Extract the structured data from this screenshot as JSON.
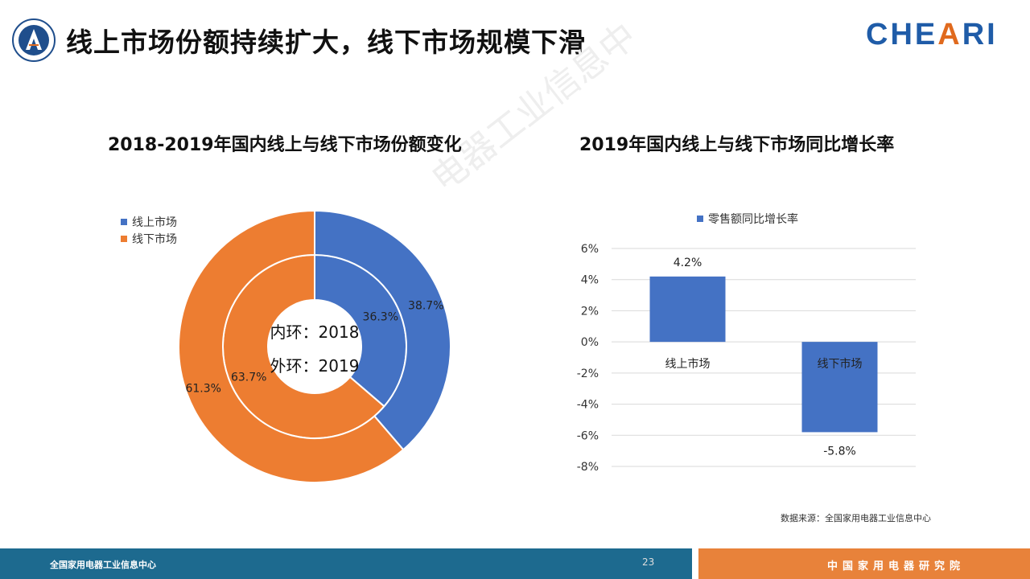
{
  "header": {
    "title": "线上市场份额持续扩大，线下市场规模下滑",
    "logo_left": "shield-logo",
    "logo_right_prefix": "CHE",
    "logo_right_accent": "A",
    "logo_right_suffix": "RI"
  },
  "watermark": "电器工业信息中",
  "footer": {
    "left_text": "全国家用电器工业信息中心",
    "page_number": "23",
    "right_text": "中国家用电器研究院"
  },
  "source": "数据来源：全国家用电器工业信息中心",
  "colors": {
    "blue": "#4472c4",
    "orange": "#ed7d31",
    "footer_blue": "#1d6a8f",
    "footer_orange": "#e8823a"
  },
  "chart_data": [
    {
      "type": "doughnut",
      "title": "2018-2019年国内线上与线下市场份额变化",
      "legend": [
        "线上市场",
        "线下市场"
      ],
      "legend_position": "top-left",
      "center_labels": [
        "内环：2018",
        "外环：2019"
      ],
      "rings": [
        {
          "name": "2018",
          "ring": "inner",
          "values": [
            36.3,
            63.7
          ],
          "labels": [
            "36.3%",
            "63.7%"
          ]
        },
        {
          "name": "2019",
          "ring": "outer",
          "values": [
            38.7,
            61.3
          ],
          "labels": [
            "38.7%",
            "61.3%"
          ]
        }
      ]
    },
    {
      "type": "bar",
      "title": "2019年国内线上与线下市场同比增长率",
      "categories": [
        "线上市场",
        "线下市场"
      ],
      "series": [
        {
          "name": "零售额同比增长率",
          "values": [
            4.2,
            -5.8
          ],
          "labels": [
            "4.2%",
            "-5.8%"
          ]
        }
      ],
      "ylim": [
        -8,
        6
      ],
      "yticks": [
        "6%",
        "4%",
        "2%",
        "0%",
        "-2%",
        "-4%",
        "-6%",
        "-8%"
      ],
      "grid": true,
      "legend_position": "top"
    }
  ]
}
